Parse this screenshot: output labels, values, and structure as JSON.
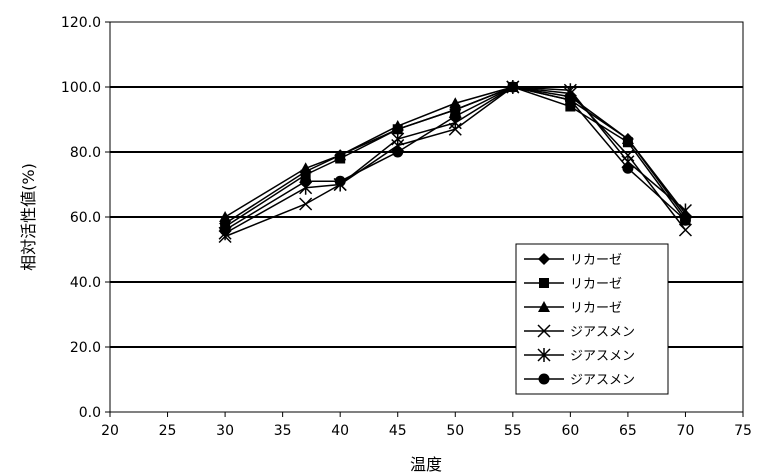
{
  "chart_data": {
    "type": "line",
    "title": "",
    "xlabel": "温度",
    "ylabel": "相対活性値(%)",
    "xlim": [
      20,
      75
    ],
    "ylim": [
      0,
      120
    ],
    "x_ticks": [
      "20",
      "25",
      "30",
      "35",
      "40",
      "45",
      "50",
      "55",
      "60",
      "65",
      "70",
      "75"
    ],
    "y_ticks": [
      "0.0",
      "20.0",
      "40.0",
      "60.0",
      "80.0",
      "100.0",
      "120.0"
    ],
    "grid": "horizontal",
    "legend_position": "lower-right",
    "x": [
      30,
      37,
      40,
      45,
      50,
      55,
      60,
      65,
      70
    ],
    "series": [
      {
        "name": "リカーゼ",
        "marker": "diamond",
        "color": "#000000",
        "values": [
          58,
          74,
          79,
          87,
          93,
          100,
          97,
          84,
          60
        ]
      },
      {
        "name": "リカーゼ",
        "marker": "square",
        "color": "#000000",
        "values": [
          57,
          73,
          78,
          87,
          93,
          100,
          94,
          83,
          59
        ]
      },
      {
        "name": "リカーゼ",
        "marker": "triangle",
        "color": "#000000",
        "values": [
          60,
          75,
          79,
          88,
          95,
          100,
          96,
          84,
          61
        ]
      },
      {
        "name": "ジアスメン",
        "marker": "x",
        "color": "#000000",
        "values": [
          54,
          64,
          70,
          82,
          87,
          100,
          98,
          79,
          56
        ]
      },
      {
        "name": "ジアスメン",
        "marker": "star",
        "color": "#000000",
        "values": [
          55,
          69,
          70,
          84,
          89,
          100,
          99,
          77,
          62
        ]
      },
      {
        "name": "ジアスメン",
        "marker": "circle",
        "color": "#000000",
        "values": [
          56,
          71,
          71,
          80,
          91,
          100,
          96,
          75,
          59
        ]
      }
    ]
  }
}
